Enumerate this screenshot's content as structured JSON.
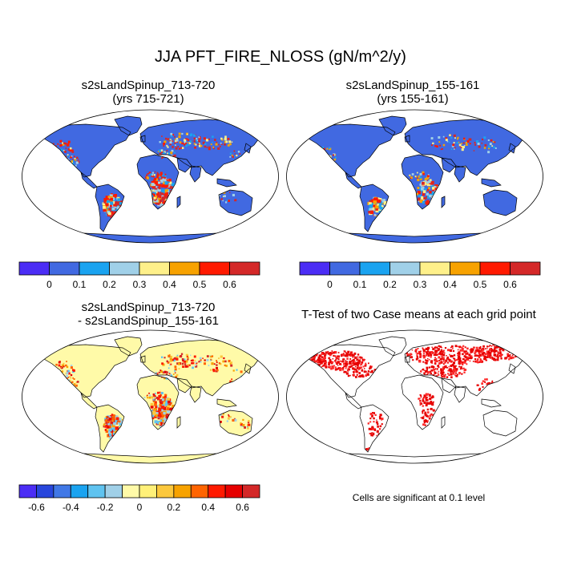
{
  "title": "JJA PFT_FIRE_NLOSS (gN/m^2/y)",
  "panels": [
    {
      "title_line1": "s2sLandSpinup_713-720",
      "title_line2": "(yrs 715-721)"
    },
    {
      "title_line1": "s2sLandSpinup_155-161",
      "title_line2": "(yrs 155-161)"
    },
    {
      "title_line1": "s2sLandSpinup_713-720",
      "title_line2": "- s2sLandSpinup_155-161"
    },
    {
      "title_line1": "T-Test of two Case means at each grid point",
      "title_line2": ""
    }
  ],
  "colorbar_top": {
    "colors": [
      "#4b2df5",
      "#4169e1",
      "#1aa3f0",
      "#a0d0e8",
      "#fef08a",
      "#f7a200",
      "#ff1a00",
      "#d42828"
    ],
    "labels": [
      "0",
      "0.1",
      "0.2",
      "0.3",
      "0.4",
      "0.5",
      "0.6"
    ]
  },
  "colorbar_diff": {
    "colors": [
      "#4b2df5",
      "#2846dc",
      "#4178e6",
      "#1aa3f0",
      "#5fc3f0",
      "#a0d0e8",
      "#fffaa8",
      "#fff078",
      "#fcc83c",
      "#f7a200",
      "#ff6400",
      "#ff1a00",
      "#e60000",
      "#d42828"
    ],
    "labels": [
      "-0.6",
      "-0.4",
      "-0.2",
      "0",
      "0.2",
      "0.4",
      "0.6"
    ]
  },
  "significance_note": "Cells are significant at 0.1 level",
  "colors": {
    "ocean": "#ffffff",
    "land_blue": "#4169e1",
    "land_yellow": "#fffaa8",
    "hot_red": "#e60000",
    "outline": "#000000"
  }
}
